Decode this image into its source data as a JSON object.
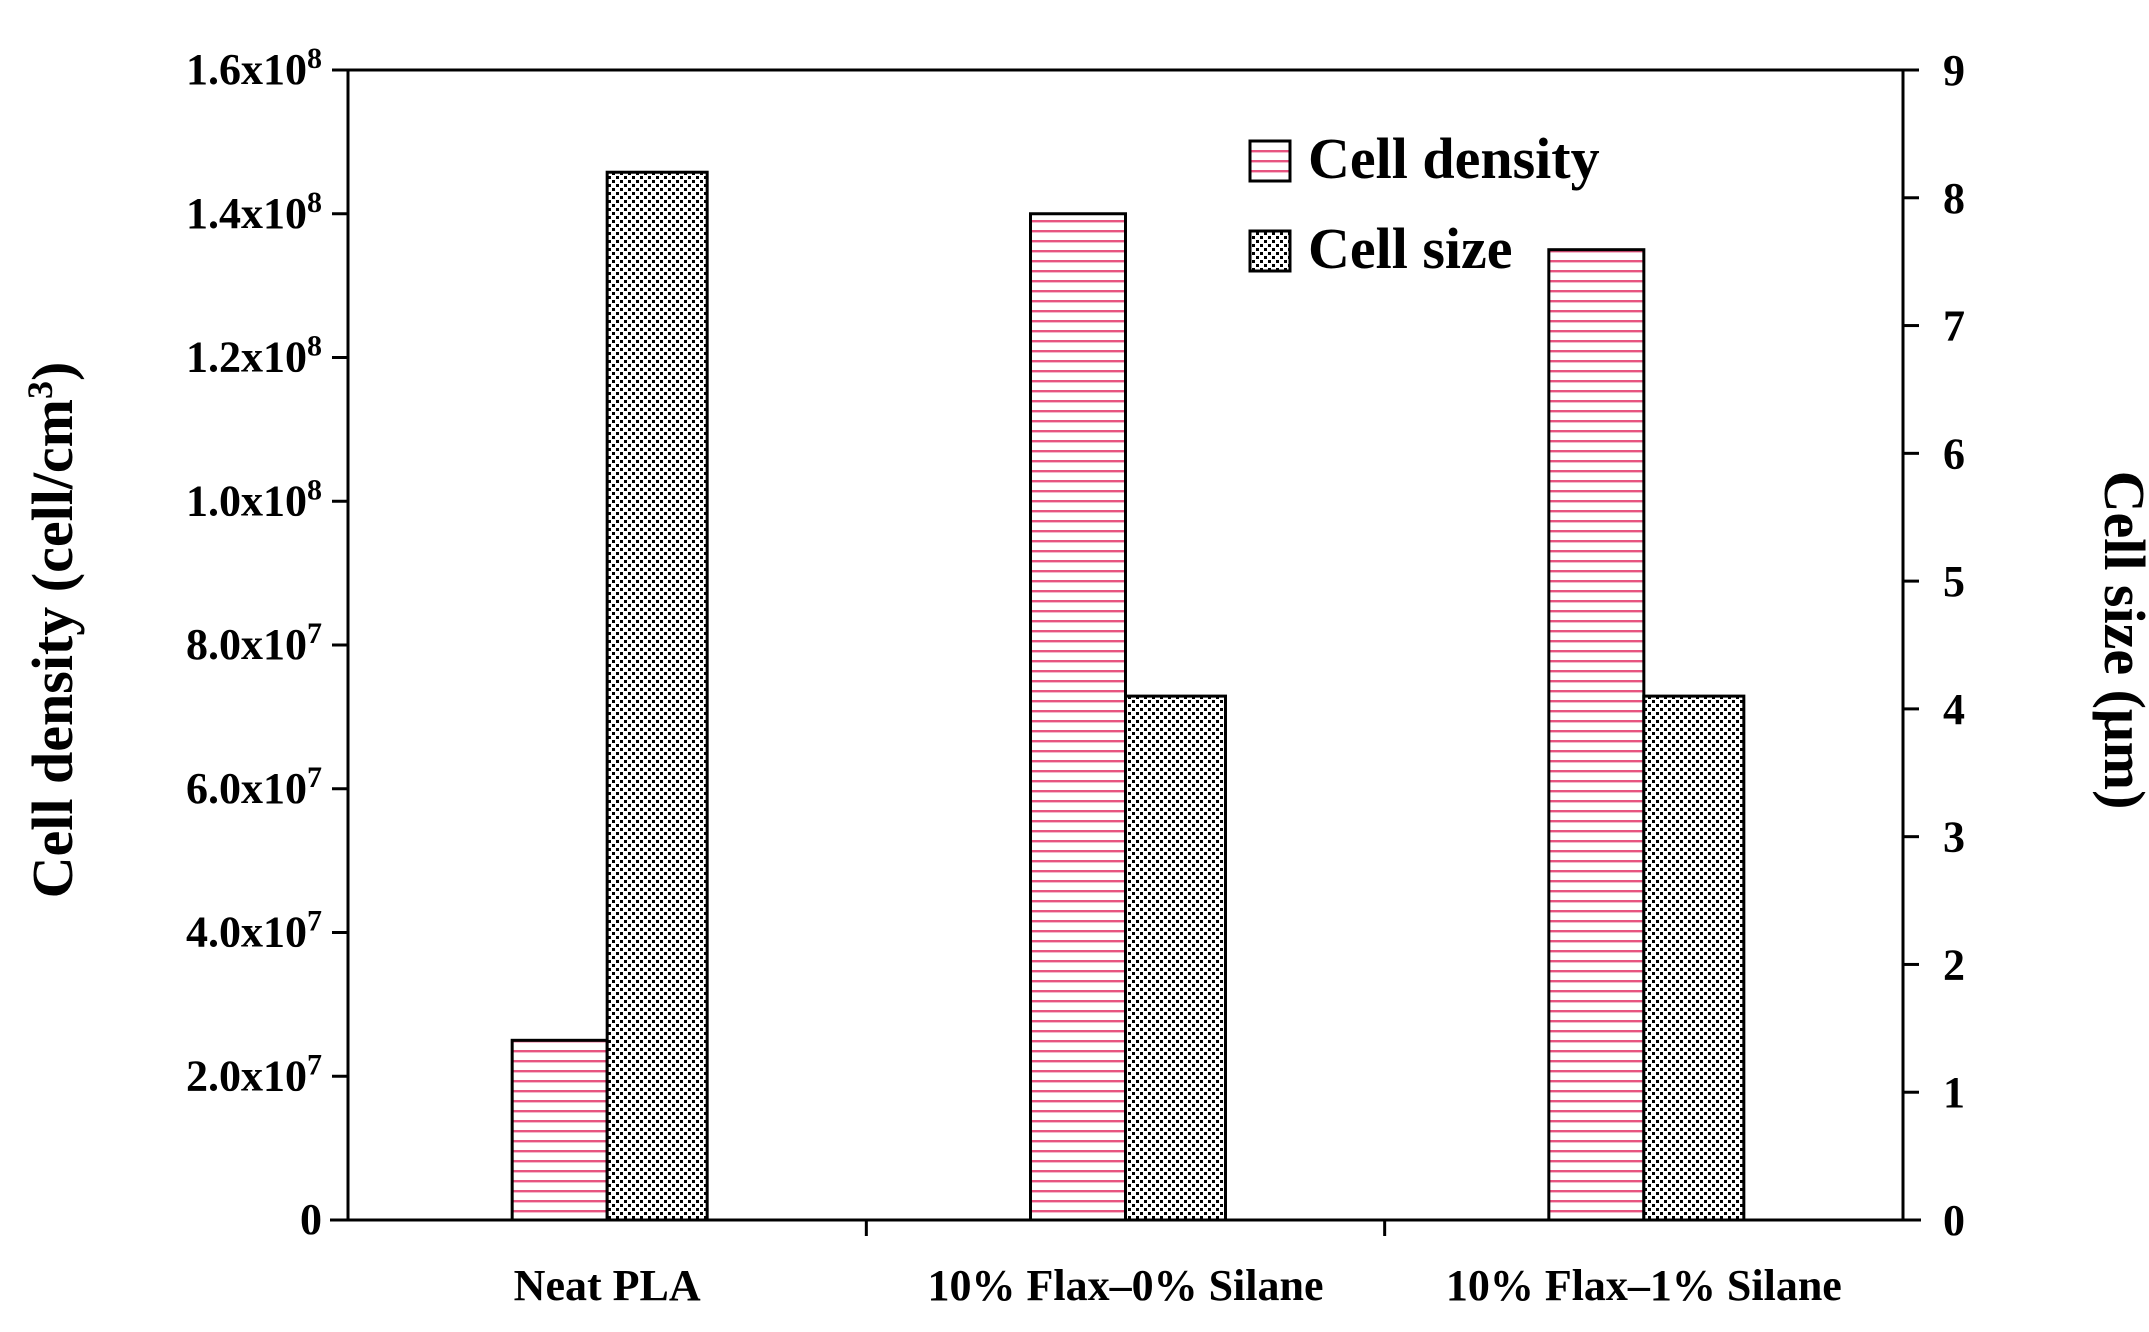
{
  "chart_data": {
    "type": "bar",
    "categories": [
      "Neat PLA",
      "10% Flax–0% Silane",
      "10% Flax–1% Silane"
    ],
    "series": [
      {
        "name": "Cell density",
        "axis": "left",
        "values": [
          25000000,
          140000000,
          135000000
        ],
        "pattern": "horizontal-lines",
        "color": "#e75480"
      },
      {
        "name": "Cell size",
        "axis": "right",
        "values": [
          8.2,
          4.1,
          4.1
        ],
        "pattern": "dots",
        "color": "#000000"
      }
    ],
    "y_left": {
      "label_text": "Cell density (cell/cm",
      "label_sup": "3",
      "label_close": ")",
      "ylim": [
        0,
        160000000
      ],
      "ticks": [
        {
          "value": 0,
          "mant": "0",
          "exp": ""
        },
        {
          "value": 20000000,
          "mant": "2.0x10",
          "exp": "7"
        },
        {
          "value": 40000000,
          "mant": "4.0x10",
          "exp": "7"
        },
        {
          "value": 60000000,
          "mant": "6.0x10",
          "exp": "7"
        },
        {
          "value": 80000000,
          "mant": "8.0x10",
          "exp": "7"
        },
        {
          "value": 100000000,
          "mant": "1.0x10",
          "exp": "8"
        },
        {
          "value": 120000000,
          "mant": "1.2x10",
          "exp": "8"
        },
        {
          "value": 140000000,
          "mant": "1.4x10",
          "exp": "8"
        },
        {
          "value": 160000000,
          "mant": "1.6x10",
          "exp": "8"
        }
      ]
    },
    "y_right": {
      "label": "Cell size (μm)",
      "ylim": [
        0,
        9
      ],
      "ticks": [
        "0",
        "1",
        "2",
        "3",
        "4",
        "5",
        "6",
        "7",
        "8",
        "9"
      ]
    },
    "legend": {
      "position": "top-right",
      "entries": [
        "Cell density",
        "Cell size"
      ]
    },
    "grid": false
  }
}
